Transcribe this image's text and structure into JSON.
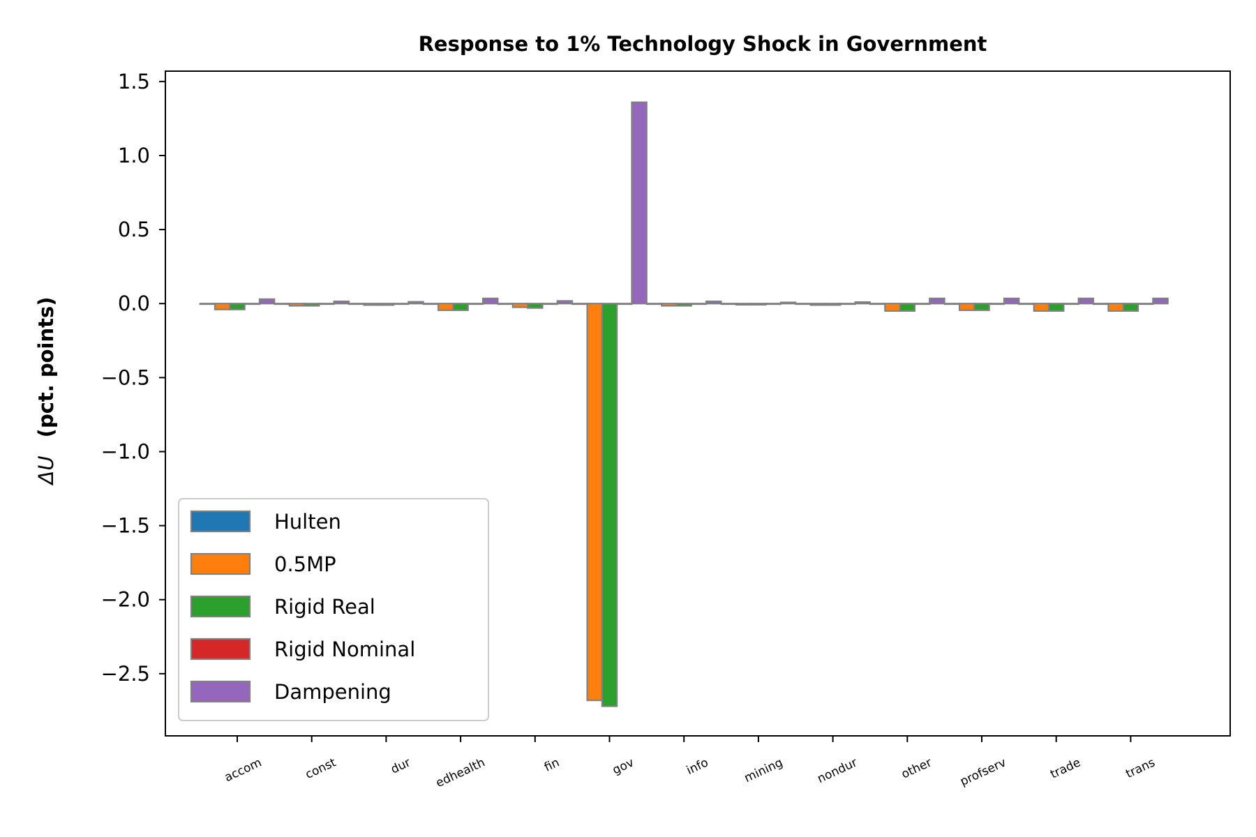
{
  "chart_data": {
    "type": "bar",
    "title": "Response to 1% Technology Shock in Government",
    "ylabel_symbol": "ΔU",
    "ylabel": "(pct. points)",
    "xlabel": "",
    "categories": [
      "accom",
      "const",
      "dur",
      "edhealth",
      "fin",
      "gov",
      "info",
      "mining",
      "nondur",
      "other",
      "profserv",
      "trade",
      "trans"
    ],
    "yticks": [
      1.5,
      1.0,
      0.5,
      0.0,
      -0.5,
      -1.0,
      -1.5,
      -2.0,
      -2.5
    ],
    "ytick_labels": [
      "1.5",
      "1.0",
      "0.5",
      "0.0",
      "−0.5",
      "−1.0",
      "−1.5",
      "−2.0",
      "−2.5"
    ],
    "ylim": [
      -2.92,
      1.57
    ],
    "grid": false,
    "legend_position": "lower-left",
    "bar_edge_color": "#808080",
    "series": [
      {
        "name": "Hulten",
        "color": "#1f77b4",
        "values": [
          0,
          0,
          0,
          0,
          0,
          0,
          0,
          0,
          0,
          0,
          0,
          0,
          0
        ]
      },
      {
        "name": "0.5MP",
        "color": "#ff7f0e",
        "values": [
          -0.04,
          -0.015,
          -0.01,
          -0.045,
          -0.025,
          -2.68,
          -0.015,
          -0.008,
          -0.01,
          -0.05,
          -0.045,
          -0.05,
          -0.05
        ]
      },
      {
        "name": "Rigid Real",
        "color": "#2ca02c",
        "values": [
          -0.04,
          -0.015,
          -0.01,
          -0.045,
          -0.03,
          -2.72,
          -0.015,
          -0.008,
          -0.01,
          -0.05,
          -0.045,
          -0.05,
          -0.05
        ]
      },
      {
        "name": "Rigid Nominal",
        "color": "#d62728",
        "values": [
          0,
          0,
          0,
          0,
          0,
          0,
          0,
          0,
          0,
          0,
          0,
          0,
          0
        ]
      },
      {
        "name": "Dampening",
        "color": "#9467bd",
        "values": [
          0.03,
          0.015,
          0.012,
          0.035,
          0.018,
          1.36,
          0.015,
          0.008,
          0.01,
          0.035,
          0.035,
          0.035,
          0.035
        ]
      }
    ]
  }
}
